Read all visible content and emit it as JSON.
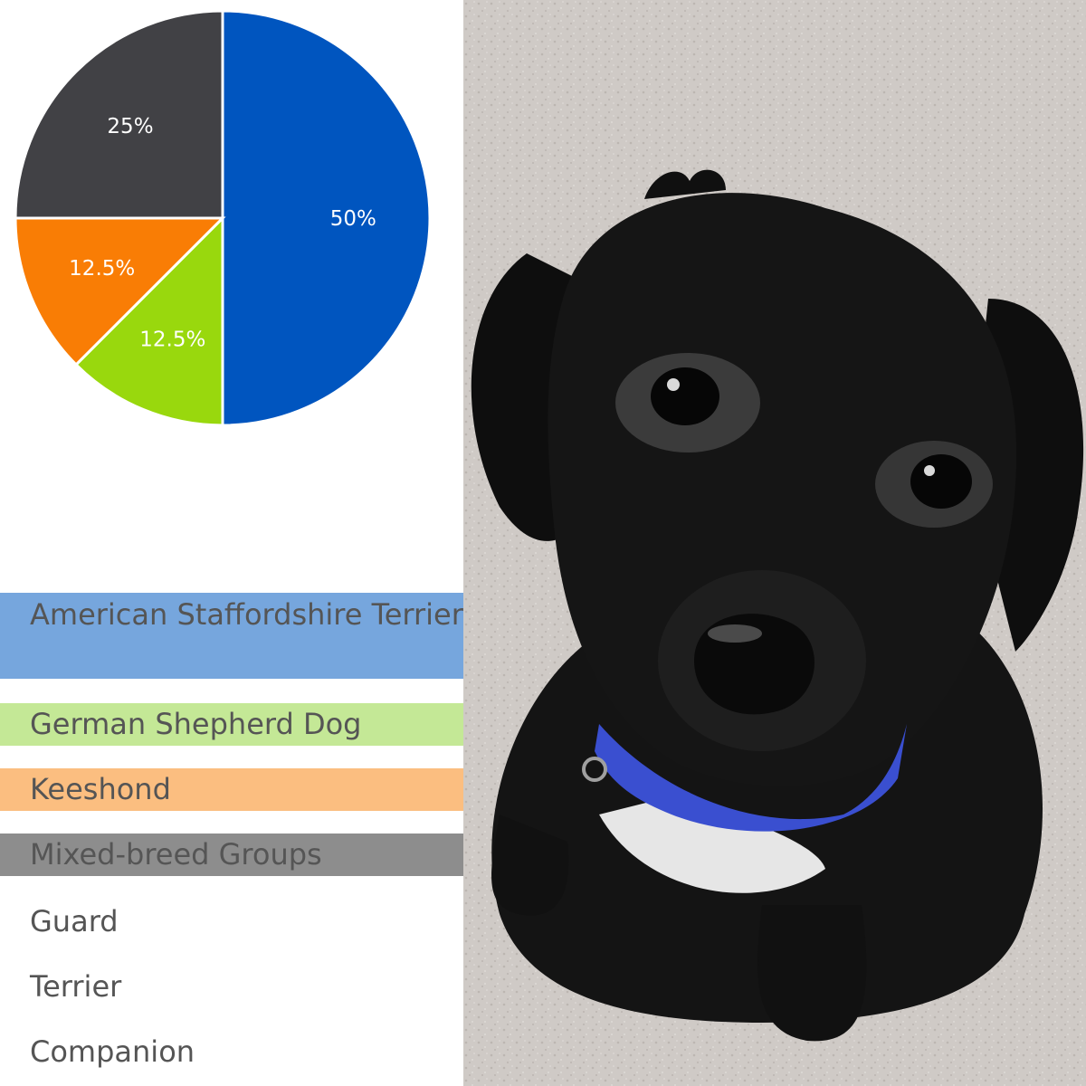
{
  "chart_data": {
    "type": "pie",
    "title": "",
    "slices": [
      {
        "label": "American Staffordshire Terrier",
        "value": 50,
        "display": "50%",
        "color": "#0055bf"
      },
      {
        "label": "German Shepherd Dog",
        "value": 12.5,
        "display": "12.5%",
        "color": "#99d80d"
      },
      {
        "label": "Keeshond",
        "value": 12.5,
        "display": "12.5%",
        "color": "#f97d05"
      },
      {
        "label": "Mixed-breed Groups",
        "value": 25,
        "display": "25%",
        "color": "#414145"
      }
    ],
    "legend_colors": [
      "#76a6dd",
      "#c4e896",
      "#fbbe80",
      "#8d8d8d"
    ],
    "legend_placement": "below"
  },
  "legend": {
    "items": [
      {
        "text": "American Staffordshire Terrier"
      },
      {
        "text": "German Shepherd Dog"
      },
      {
        "text": "Keeshond"
      },
      {
        "text": "Mixed-breed Groups"
      }
    ]
  },
  "groups": {
    "items": [
      "Guard",
      "Terrier",
      "Companion"
    ]
  },
  "photo": {
    "subject": "black-puppy",
    "colors": {
      "floor": "#cfcac6",
      "fur": "#141414",
      "collar": "#3a4fd0",
      "chest": "#e6e6e6"
    }
  }
}
